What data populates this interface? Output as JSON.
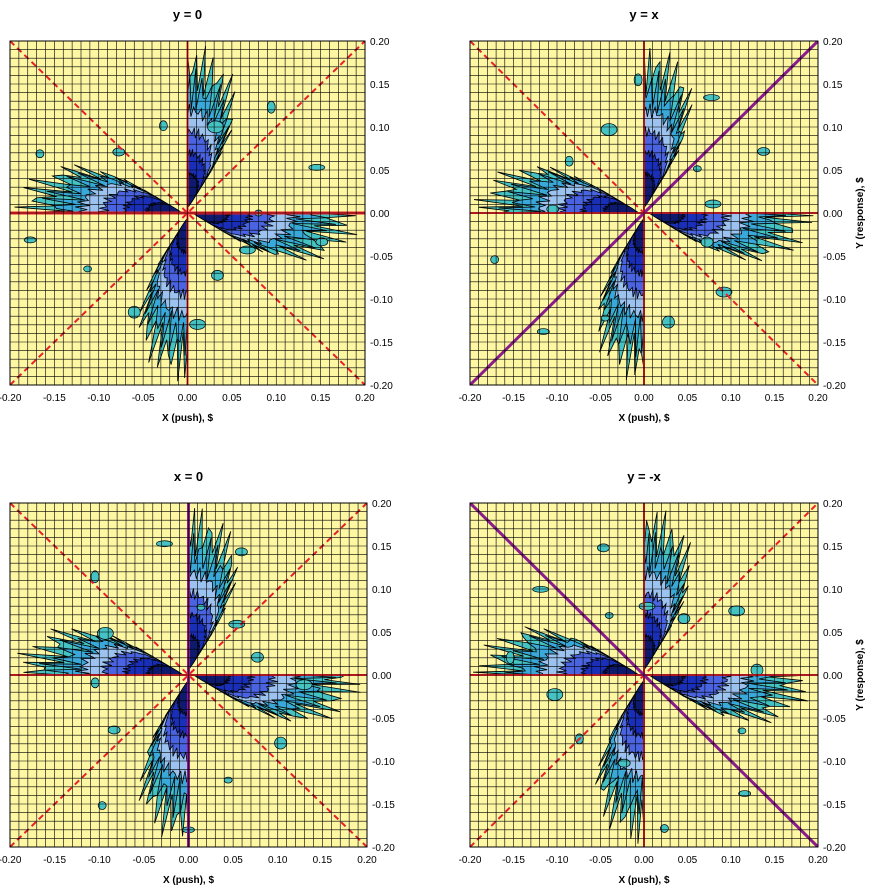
{
  "chart_data": [
    {
      "type": "heatmap",
      "title": "y = 0",
      "xlabel": "X (push), $",
      "ylabel": "",
      "xlim": [
        -0.2,
        0.2
      ],
      "ylim": [
        -0.2,
        0.2
      ],
      "x_ticks": [
        "-0.20",
        "-0.15",
        "-0.10",
        "-0.05",
        "0.00",
        "0.05",
        "0.10",
        "0.15",
        "0.20"
      ],
      "y_ticks": [
        "0.20",
        "0.15",
        "0.10",
        "0.05",
        "0.00",
        "-0.05",
        "-0.10",
        "-0.15",
        "-0.20"
      ],
      "grid": true,
      "highlight_line": "y=0",
      "reference_lines": [
        {
          "name": "x=0",
          "slope": null,
          "style": "solid",
          "color": "#e8202a"
        },
        {
          "name": "y=0",
          "slope": 0,
          "style": "solid",
          "color": "#e8202a"
        },
        {
          "name": "y=x",
          "slope": 1,
          "style": "dashed",
          "color": "#e8202a"
        },
        {
          "name": "y=-x",
          "slope": -1,
          "style": "dashed",
          "color": "#e8202a"
        }
      ],
      "density_lobes": [
        {
          "quadrant": "Q2 (x<0, y>0)",
          "direction": "near y=0",
          "peak_x": -0.05,
          "peak_y": 0.02
        },
        {
          "quadrant": "Q1 (x>0, y>0)",
          "direction": "near x=0",
          "peak_x": 0.01,
          "peak_y": 0.09
        },
        {
          "quadrant": "Q3 (x<0, y<0)",
          "direction": "near x=0",
          "peak_x": -0.02,
          "peak_y": -0.07
        },
        {
          "quadrant": "Q4 (x>0, y<0)",
          "direction": "near y=0",
          "peak_x": 0.05,
          "peak_y": -0.03
        }
      ]
    },
    {
      "type": "heatmap",
      "title": "y = x",
      "xlabel": "X (push), $",
      "ylabel": "Y (response), $",
      "xlim": [
        -0.2,
        0.2
      ],
      "ylim": [
        -0.2,
        0.2
      ],
      "x_ticks": [
        "-0.20",
        "-0.15",
        "-0.10",
        "-0.05",
        "0.00",
        "0.05",
        "0.10",
        "0.15",
        "0.20"
      ],
      "y_ticks": [
        "0.20",
        "0.15",
        "0.10",
        "0.05",
        "0.00",
        "-0.05",
        "-0.10",
        "-0.15",
        "-0.20"
      ],
      "grid": true,
      "highlight_line": "y=x",
      "reference_lines": [
        {
          "name": "x=0",
          "slope": null,
          "style": "solid",
          "color": "#e8202a"
        },
        {
          "name": "y=0",
          "slope": 0,
          "style": "solid",
          "color": "#e8202a"
        },
        {
          "name": "y=x",
          "slope": 1,
          "style": "solid",
          "color": "#8b1a8b"
        },
        {
          "name": "y=-x",
          "slope": -1,
          "style": "dashed",
          "color": "#e8202a"
        }
      ],
      "density_lobes": [
        {
          "quadrant": "Q2 (x<0, y>0)",
          "direction": "near y=0",
          "peak_x": -0.07,
          "peak_y": 0.01
        },
        {
          "quadrant": "Q1 (x>0, y>0)",
          "direction": "near x=0",
          "peak_x": 0.01,
          "peak_y": 0.09
        },
        {
          "quadrant": "Q3 (x<0, y<0)",
          "direction": "near x=0",
          "peak_x": -0.02,
          "peak_y": -0.08
        },
        {
          "quadrant": "Q4 (x>0, y<0)",
          "direction": "near y=0",
          "peak_x": 0.06,
          "peak_y": -0.01
        }
      ]
    },
    {
      "type": "heatmap",
      "title": "x = 0",
      "xlabel": "X (push), $",
      "ylabel": "",
      "xlim": [
        -0.2,
        0.2
      ],
      "ylim": [
        -0.2,
        0.2
      ],
      "x_ticks": [
        "-0.20",
        "-0.15",
        "-0.10",
        "-0.05",
        "0.00",
        "0.05",
        "0.10",
        "0.15",
        "0.20"
      ],
      "y_ticks": [
        "0.20",
        "0.15",
        "0.10",
        "0.05",
        "0.00",
        "-0.05",
        "-0.10",
        "-0.15",
        "-0.20"
      ],
      "grid": true,
      "highlight_line": "x=0",
      "reference_lines": [
        {
          "name": "x=0",
          "slope": null,
          "style": "solid",
          "color": "#8b1a8b"
        },
        {
          "name": "y=0",
          "slope": 0,
          "style": "solid",
          "color": "#e8202a"
        },
        {
          "name": "y=x",
          "slope": 1,
          "style": "dashed",
          "color": "#e8202a"
        },
        {
          "name": "y=-x",
          "slope": -1,
          "style": "dashed",
          "color": "#e8202a"
        }
      ],
      "density_lobes": [
        {
          "quadrant": "Q2 (x<0, y>0)",
          "direction": "near y=0",
          "peak_x": -0.05,
          "peak_y": 0.03
        },
        {
          "quadrant": "Q1 (x>0, y>0)",
          "direction": "near x=0",
          "peak_x": 0.01,
          "peak_y": 0.09
        },
        {
          "quadrant": "Q3 (x<0, y<0)",
          "direction": "near x=0",
          "peak_x": -0.02,
          "peak_y": -0.08
        },
        {
          "quadrant": "Q4 (x>0, y<0)",
          "direction": "near y=0",
          "peak_x": 0.05,
          "peak_y": -0.03
        }
      ]
    },
    {
      "type": "heatmap",
      "title": "y = -x",
      "xlabel": "X (push), $",
      "ylabel": "Y (response), $",
      "xlim": [
        -0.2,
        0.2
      ],
      "ylim": [
        -0.2,
        0.2
      ],
      "x_ticks": [
        "-0.20",
        "-0.15",
        "-0.10",
        "-0.05",
        "0.00",
        "0.05",
        "0.10",
        "0.15",
        "0.20"
      ],
      "y_ticks": [
        "0.20",
        "0.15",
        "0.10",
        "0.05",
        "0.00",
        "-0.05",
        "-0.10",
        "-0.15",
        "-0.20"
      ],
      "grid": true,
      "highlight_line": "y=-x",
      "reference_lines": [
        {
          "name": "x=0",
          "slope": null,
          "style": "solid",
          "color": "#e8202a"
        },
        {
          "name": "y=0",
          "slope": 0,
          "style": "solid",
          "color": "#e8202a"
        },
        {
          "name": "y=x",
          "slope": 1,
          "style": "dashed",
          "color": "#e8202a"
        },
        {
          "name": "y=-x",
          "slope": -1,
          "style": "solid",
          "color": "#8b1a8b"
        }
      ],
      "density_lobes": [
        {
          "quadrant": "Q2 (x<0, y>0)",
          "direction": "near y=0",
          "peak_x": -0.07,
          "peak_y": 0.01
        },
        {
          "quadrant": "Q1 (x>0, y>0)",
          "direction": "near x=0",
          "peak_x": 0.01,
          "peak_y": 0.09
        },
        {
          "quadrant": "Q3 (x<0, y<0)",
          "direction": "near x=0",
          "peak_x": -0.02,
          "peak_y": -0.08
        },
        {
          "quadrant": "Q4 (x>0, y<0)",
          "direction": "near y=0",
          "peak_x": 0.06,
          "peak_y": -0.01
        }
      ]
    }
  ],
  "colors": {
    "background": "#fdf6a3",
    "grid": "#000000",
    "level_1": "#45c2c2",
    "level_2": "#3aa8d8",
    "level_3": "#9cc3f0",
    "level_4": "#4a63e0",
    "level_5": "#1a2fb8",
    "level_6": "#0d1a6e",
    "reference_line": "#e8202a",
    "highlight_line": "#8b1a8b"
  }
}
